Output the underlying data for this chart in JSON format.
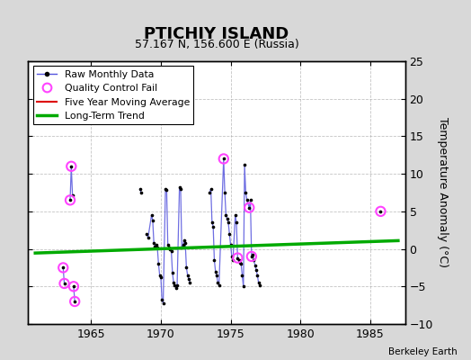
{
  "title": "PTICHIY ISLAND",
  "subtitle": "57.167 N, 156.600 E (Russia)",
  "ylabel": "Temperature Anomaly (°C)",
  "credit": "Berkeley Earth",
  "xlim": [
    1960.5,
    1987.5
  ],
  "ylim": [
    -10,
    25
  ],
  "yticks": [
    -10,
    -5,
    0,
    5,
    10,
    15,
    20,
    25
  ],
  "xticks": [
    1965,
    1970,
    1975,
    1980,
    1985
  ],
  "background_color": "#d8d8d8",
  "plot_bg_color": "#ffffff",
  "grid_color": "#aaaaaa",
  "raw_segments": [
    [
      [
        1963.0,
        -2.5
      ],
      [
        1963.083,
        -4.6
      ]
    ],
    [
      [
        1963.5,
        6.5
      ],
      [
        1963.583,
        11.0
      ],
      [
        1963.667,
        7.2
      ]
    ],
    [
      [
        1963.75,
        -5.0
      ],
      [
        1963.833,
        -7.0
      ]
    ],
    [
      [
        1968.5,
        8.0
      ],
      [
        1968.583,
        7.5
      ]
    ],
    [
      [
        1969.0,
        2.0
      ],
      [
        1969.083,
        1.5
      ],
      [
        1969.333,
        4.5
      ],
      [
        1969.417,
        3.8
      ],
      [
        1969.5,
        0.8
      ],
      [
        1969.583,
        0.3
      ],
      [
        1969.667,
        0.5
      ],
      [
        1969.75,
        0.2
      ],
      [
        1969.833,
        -2.0
      ],
      [
        1969.917,
        -3.5
      ],
      [
        1970.0,
        -3.8
      ],
      [
        1970.083,
        -6.8
      ],
      [
        1970.167,
        -7.2
      ],
      [
        1970.333,
        8.0
      ],
      [
        1970.417,
        7.8
      ],
      [
        1970.5,
        0.5
      ],
      [
        1970.583,
        0.2
      ],
      [
        1970.667,
        0.0
      ],
      [
        1970.75,
        -0.3
      ],
      [
        1970.833,
        -3.2
      ],
      [
        1970.917,
        -4.5
      ],
      [
        1971.0,
        -4.8
      ],
      [
        1971.083,
        -5.2
      ],
      [
        1971.167,
        -4.8
      ],
      [
        1971.333,
        8.2
      ],
      [
        1971.417,
        8.0
      ],
      [
        1971.5,
        0.2
      ],
      [
        1971.583,
        0.5
      ],
      [
        1971.667,
        1.2
      ],
      [
        1971.75,
        0.8
      ],
      [
        1971.833,
        -2.5
      ],
      [
        1971.917,
        -3.5
      ],
      [
        1972.0,
        -4.0
      ],
      [
        1972.083,
        -4.5
      ]
    ],
    [
      [
        1973.5,
        7.5
      ],
      [
        1973.583,
        8.0
      ],
      [
        1973.667,
        3.5
      ],
      [
        1973.75,
        3.0
      ],
      [
        1973.833,
        -1.5
      ],
      [
        1973.917,
        -3.0
      ],
      [
        1974.0,
        -3.5
      ],
      [
        1974.083,
        -4.5
      ],
      [
        1974.167,
        -4.8
      ],
      [
        1974.5,
        12.0
      ],
      [
        1974.583,
        7.5
      ],
      [
        1974.667,
        4.5
      ],
      [
        1974.75,
        4.0
      ],
      [
        1974.833,
        3.5
      ],
      [
        1974.917,
        2.0
      ],
      [
        1975.0,
        0.5
      ],
      [
        1975.083,
        -1.0
      ],
      [
        1975.167,
        -1.5
      ],
      [
        1975.333,
        4.5
      ],
      [
        1975.417,
        3.5
      ],
      [
        1975.5,
        -1.2
      ],
      [
        1975.583,
        -1.5
      ],
      [
        1975.667,
        -1.8
      ],
      [
        1975.75,
        -2.0
      ],
      [
        1975.833,
        -3.5
      ],
      [
        1975.917,
        -5.0
      ],
      [
        1976.0,
        11.2
      ],
      [
        1976.083,
        7.5
      ],
      [
        1976.167,
        6.5
      ],
      [
        1976.333,
        5.5
      ],
      [
        1976.417,
        6.5
      ],
      [
        1976.5,
        -1.0
      ],
      [
        1976.583,
        -0.8
      ],
      [
        1976.667,
        -1.5
      ],
      [
        1976.75,
        -2.2
      ],
      [
        1976.833,
        -2.8
      ],
      [
        1976.917,
        -3.5
      ],
      [
        1977.0,
        -4.5
      ],
      [
        1977.083,
        -4.8
      ]
    ],
    [
      [
        1985.75,
        5.0
      ]
    ]
  ],
  "isolated_points": [
    [
      1963.0,
      -2.5
    ],
    [
      1963.083,
      -4.6
    ],
    [
      1963.5,
      6.5
    ],
    [
      1963.583,
      11.0
    ],
    [
      1963.667,
      7.2
    ],
    [
      1963.75,
      -5.0
    ],
    [
      1963.833,
      -7.0
    ],
    [
      1968.5,
      8.0
    ],
    [
      1968.583,
      7.5
    ]
  ],
  "qc_fail_data": [
    [
      1963.0,
      -2.5
    ],
    [
      1963.083,
      -4.6
    ],
    [
      1963.5,
      6.5
    ],
    [
      1963.583,
      11.0
    ],
    [
      1963.75,
      -5.0
    ],
    [
      1963.833,
      -7.0
    ],
    [
      1974.5,
      12.0
    ],
    [
      1975.5,
      -1.2
    ],
    [
      1976.333,
      5.5
    ],
    [
      1976.5,
      -1.0
    ],
    [
      1985.75,
      5.0
    ]
  ],
  "trend_x": [
    1961.0,
    1987.0
  ],
  "trend_y": [
    -0.55,
    1.1
  ],
  "line_color": "#5555dd",
  "dot_color": "#000000",
  "qc_color": "#ff44ff",
  "moving_avg_color": "#dd0000",
  "trend_color": "#00aa00",
  "title_fontsize": 13,
  "subtitle_fontsize": 9,
  "tick_fontsize": 9,
  "ylabel_fontsize": 9
}
